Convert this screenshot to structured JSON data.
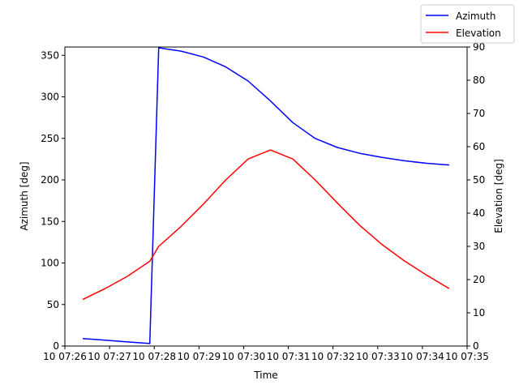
{
  "chart_data": {
    "type": "line",
    "xlabel": "Time",
    "ylabel_left": "Azimuth [deg]",
    "ylabel_right": "Elevation [deg]",
    "x_ticks": [
      "10 07:26",
      "10 07:27",
      "10 07:28",
      "10 07:29",
      "10 07:30",
      "10 07:31",
      "10 07:32",
      "10 07:33",
      "10 07:34",
      "10 07:35"
    ],
    "xlim": [
      "07:26",
      "07:35"
    ],
    "ylim_left": [
      0,
      360
    ],
    "y_ticks_left": [
      0,
      50,
      100,
      150,
      200,
      250,
      300,
      350
    ],
    "ylim_right": [
      0,
      90
    ],
    "y_ticks_right": [
      0,
      10,
      20,
      30,
      40,
      50,
      60,
      70,
      80,
      90
    ],
    "grid": false,
    "legend_position": "top-right",
    "series": [
      {
        "name": "Azimuth",
        "axis": "left",
        "color": "#0000ff",
        "x": [
          "07:26:24",
          "07:26:54",
          "07:27:24",
          "07:27:54",
          "07:28:06",
          "07:28:36",
          "07:29:06",
          "07:29:36",
          "07:30:06",
          "07:30:36",
          "07:31:06",
          "07:31:36",
          "07:32:06",
          "07:32:36",
          "07:33:06",
          "07:33:36",
          "07:34:06",
          "07:34:36"
        ],
        "values": [
          9,
          7,
          5,
          3,
          359,
          355,
          348,
          336,
          319,
          295,
          269,
          250,
          239,
          232,
          227,
          223,
          220,
          218
        ]
      },
      {
        "name": "Elevation",
        "axis": "right",
        "color": "#ff0000",
        "x": [
          "07:26:24",
          "07:26:54",
          "07:27:24",
          "07:27:54",
          "07:28:06",
          "07:28:36",
          "07:29:06",
          "07:29:36",
          "07:30:06",
          "07:30:36",
          "07:31:06",
          "07:31:36",
          "07:32:06",
          "07:32:36",
          "07:33:06",
          "07:33:36",
          "07:34:06",
          "07:34:36"
        ],
        "values": [
          14,
          17.3,
          21,
          25.5,
          30,
          36,
          42.7,
          50,
          56.3,
          59,
          56.3,
          50,
          43,
          36.3,
          30.5,
          25.6,
          21.3,
          17.3
        ]
      }
    ]
  }
}
